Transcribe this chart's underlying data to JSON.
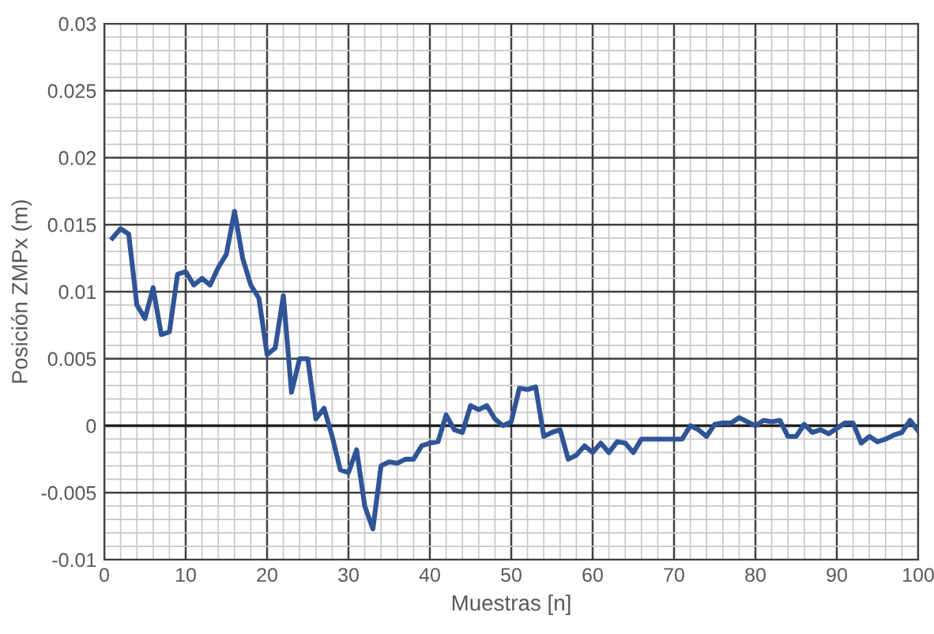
{
  "chart_data": {
    "type": "line",
    "xlabel": "Muestras [n]",
    "ylabel": "Posición ZMPx (m)",
    "x": [
      1,
      2,
      3,
      4,
      5,
      6,
      7,
      8,
      9,
      10,
      11,
      12,
      13,
      14,
      15,
      16,
      17,
      18,
      19,
      20,
      21,
      22,
      23,
      24,
      25,
      26,
      27,
      28,
      29,
      30,
      31,
      32,
      33,
      34,
      35,
      36,
      37,
      38,
      39,
      40,
      41,
      42,
      43,
      44,
      45,
      46,
      47,
      48,
      49,
      50,
      51,
      52,
      53,
      54,
      55,
      56,
      57,
      58,
      59,
      60,
      61,
      62,
      63,
      64,
      65,
      66,
      67,
      68,
      69,
      70,
      71,
      72,
      73,
      74,
      75,
      76,
      77,
      78,
      79,
      80,
      81,
      82,
      83,
      84,
      85,
      86,
      87,
      88,
      89,
      90,
      91,
      92,
      93,
      94,
      95,
      96,
      97,
      98,
      99,
      100
    ],
    "series": [
      {
        "color": "#2f5597",
        "values": [
          0.014,
          0.0147,
          0.0143,
          0.009,
          0.008,
          0.0103,
          0.0068,
          0.007,
          0.0113,
          0.0115,
          0.0105,
          0.011,
          0.0105,
          0.0118,
          0.0128,
          0.016,
          0.0125,
          0.0105,
          0.0095,
          0.0053,
          0.0058,
          0.0097,
          0.0025,
          0.005,
          0.005,
          0.0005,
          0.0013,
          -0.0008,
          -0.0033,
          -0.0035,
          -0.0018,
          -0.006,
          -0.0077,
          -0.003,
          -0.0027,
          -0.0028,
          -0.0025,
          -0.0025,
          -0.0015,
          -0.0013,
          -0.0012,
          0.0008,
          -0.0003,
          -0.0005,
          0.0015,
          0.0012,
          0.0015,
          0.0005,
          0.0,
          0.0003,
          0.0028,
          0.0027,
          0.0029,
          -0.0008,
          -0.0005,
          -0.0003,
          -0.0025,
          -0.0022,
          -0.0015,
          -0.002,
          -0.0013,
          -0.002,
          -0.0012,
          -0.0013,
          -0.002,
          -0.001,
          -0.001,
          -0.001,
          -0.001,
          -0.001,
          -0.001,
          0.0,
          -0.0003,
          -0.0008,
          0.0001,
          0.0002,
          0.0002,
          0.0006,
          0.0003,
          0.0,
          0.0004,
          0.0003,
          0.0004,
          -0.0008,
          -0.0008,
          0.0001,
          -0.0005,
          -0.0003,
          -0.0006,
          -0.0002,
          0.0002,
          0.0002,
          -0.0013,
          -0.0008,
          -0.0012,
          -0.001,
          -0.0007,
          -0.0005,
          0.0004,
          -0.0004
        ]
      }
    ],
    "xlim": [
      0,
      100
    ],
    "xticks": [
      0,
      10,
      20,
      30,
      40,
      50,
      60,
      70,
      80,
      90,
      100
    ],
    "ylim": [
      -0.01,
      0.03
    ],
    "yticks": [
      -0.01,
      -0.005,
      0,
      0.005,
      0.01,
      0.015,
      0.02,
      0.025,
      0.03
    ],
    "grid": true,
    "marker": "none",
    "line_style": "solid",
    "legend": false
  }
}
